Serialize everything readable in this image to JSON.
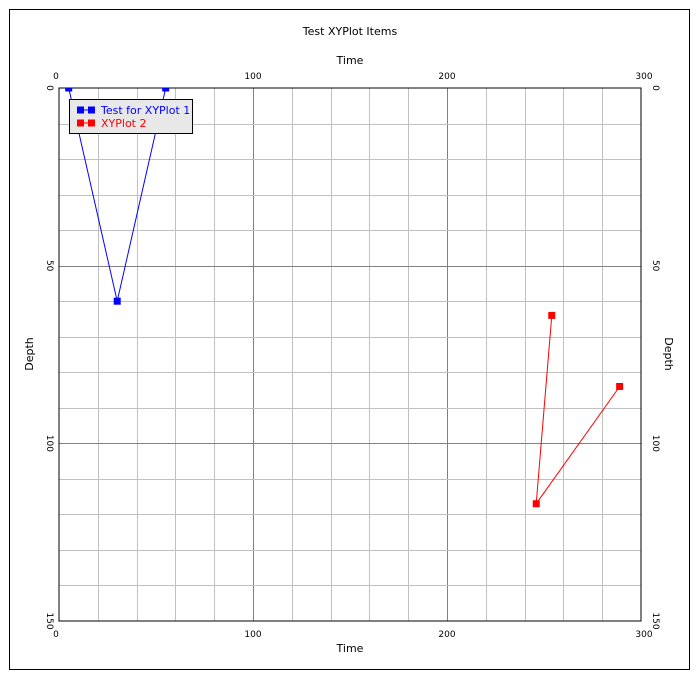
{
  "chart_data": {
    "type": "line",
    "title": "Test XYPlot Items",
    "xlabel_top": "Time",
    "xlabel_bottom": "Time",
    "ylabel_left": "Depth",
    "ylabel_right": "Depth",
    "xlim": [
      0,
      300
    ],
    "ylim": [
      0,
      150
    ],
    "y_inverted": true,
    "x_major_ticks": [
      0,
      100,
      200,
      300
    ],
    "x_tick_labels": [
      "0",
      "100",
      "200",
      "300"
    ],
    "x_minor_step": 20,
    "y_major_ticks": [
      0,
      50,
      100,
      150
    ],
    "y_tick_labels": [
      "0",
      "50",
      "100",
      "150"
    ],
    "y_minor_step": 10,
    "grid": true,
    "legend_position": "top-left",
    "series": [
      {
        "name": "Test for XYPlot 1",
        "color": "#0000ff",
        "marker": "square",
        "x": [
          5,
          30,
          55
        ],
        "y": [
          0,
          60,
          0
        ]
      },
      {
        "name": "XYPlot 2",
        "color": "#ff0000",
        "marker": "square",
        "x": [
          254,
          246,
          289
        ],
        "y": [
          64,
          117,
          84
        ]
      }
    ]
  }
}
